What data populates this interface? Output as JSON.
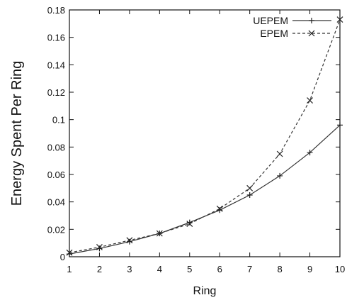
{
  "chart_data": {
    "type": "line",
    "xlabel": "Ring",
    "ylabel": "Energy Spent Per Ring",
    "xlim": [
      1,
      10
    ],
    "ylim": [
      0,
      0.18
    ],
    "x_ticks": [
      "1",
      "2",
      "3",
      "4",
      "5",
      "6",
      "7",
      "8",
      "9",
      "10"
    ],
    "y_ticks": [
      "0",
      "0.02",
      "0.04",
      "0.06",
      "0.08",
      "0.1",
      "0.12",
      "0.14",
      "0.16",
      "0.18"
    ],
    "grid": false,
    "legend_position": "top-right",
    "x": [
      1,
      2,
      3,
      4,
      5,
      6,
      7,
      8,
      9,
      10
    ],
    "series": [
      {
        "name": "UEPEM",
        "marker": "plus",
        "line_style": "solid",
        "values": [
          0.002,
          0.006,
          0.011,
          0.017,
          0.025,
          0.034,
          0.045,
          0.059,
          0.076,
          0.096
        ]
      },
      {
        "name": "EPEM",
        "marker": "cross",
        "line_style": "dashed",
        "values": [
          0.003,
          0.007,
          0.012,
          0.017,
          0.024,
          0.035,
          0.05,
          0.075,
          0.114,
          0.173
        ]
      }
    ]
  }
}
